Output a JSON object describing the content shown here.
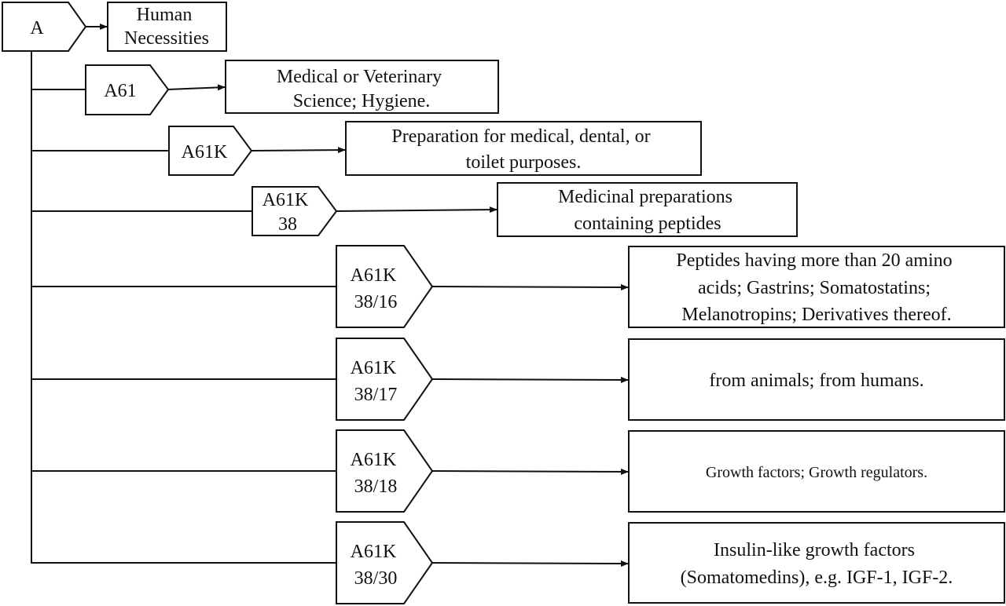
{
  "diagram": {
    "root": {
      "code": [
        "A"
      ],
      "description": [
        "Human",
        "Necessities"
      ]
    },
    "nodes": [
      {
        "code": [
          "A61"
        ],
        "description": [
          "Medical or Veterinary",
          "Science; Hygiene."
        ]
      },
      {
        "code": [
          "A61K"
        ],
        "description": [
          "Preparation for medical, dental, or",
          "toilet purposes."
        ]
      },
      {
        "code": [
          "A61K",
          "38"
        ],
        "description": [
          "Medicinal preparations",
          "containing peptides"
        ]
      },
      {
        "code": [
          "A61K",
          "38/16"
        ],
        "description": [
          "Peptides having more than 20 amino",
          "acids; Gastrins; Somatostatins;",
          "Melanotropins; Derivatives thereof."
        ]
      },
      {
        "code": [
          "A61K",
          "38/17"
        ],
        "description": [
          "from animals; from humans."
        ]
      },
      {
        "code": [
          "A61K",
          "38/18"
        ],
        "description": [
          "Growth factors; Growth regulators."
        ]
      },
      {
        "code": [
          "A61K",
          "38/30"
        ],
        "description": [
          "Insulin-like growth factors",
          "(Somatomedins), e.g. IGF-1, IGF-2."
        ]
      }
    ]
  }
}
